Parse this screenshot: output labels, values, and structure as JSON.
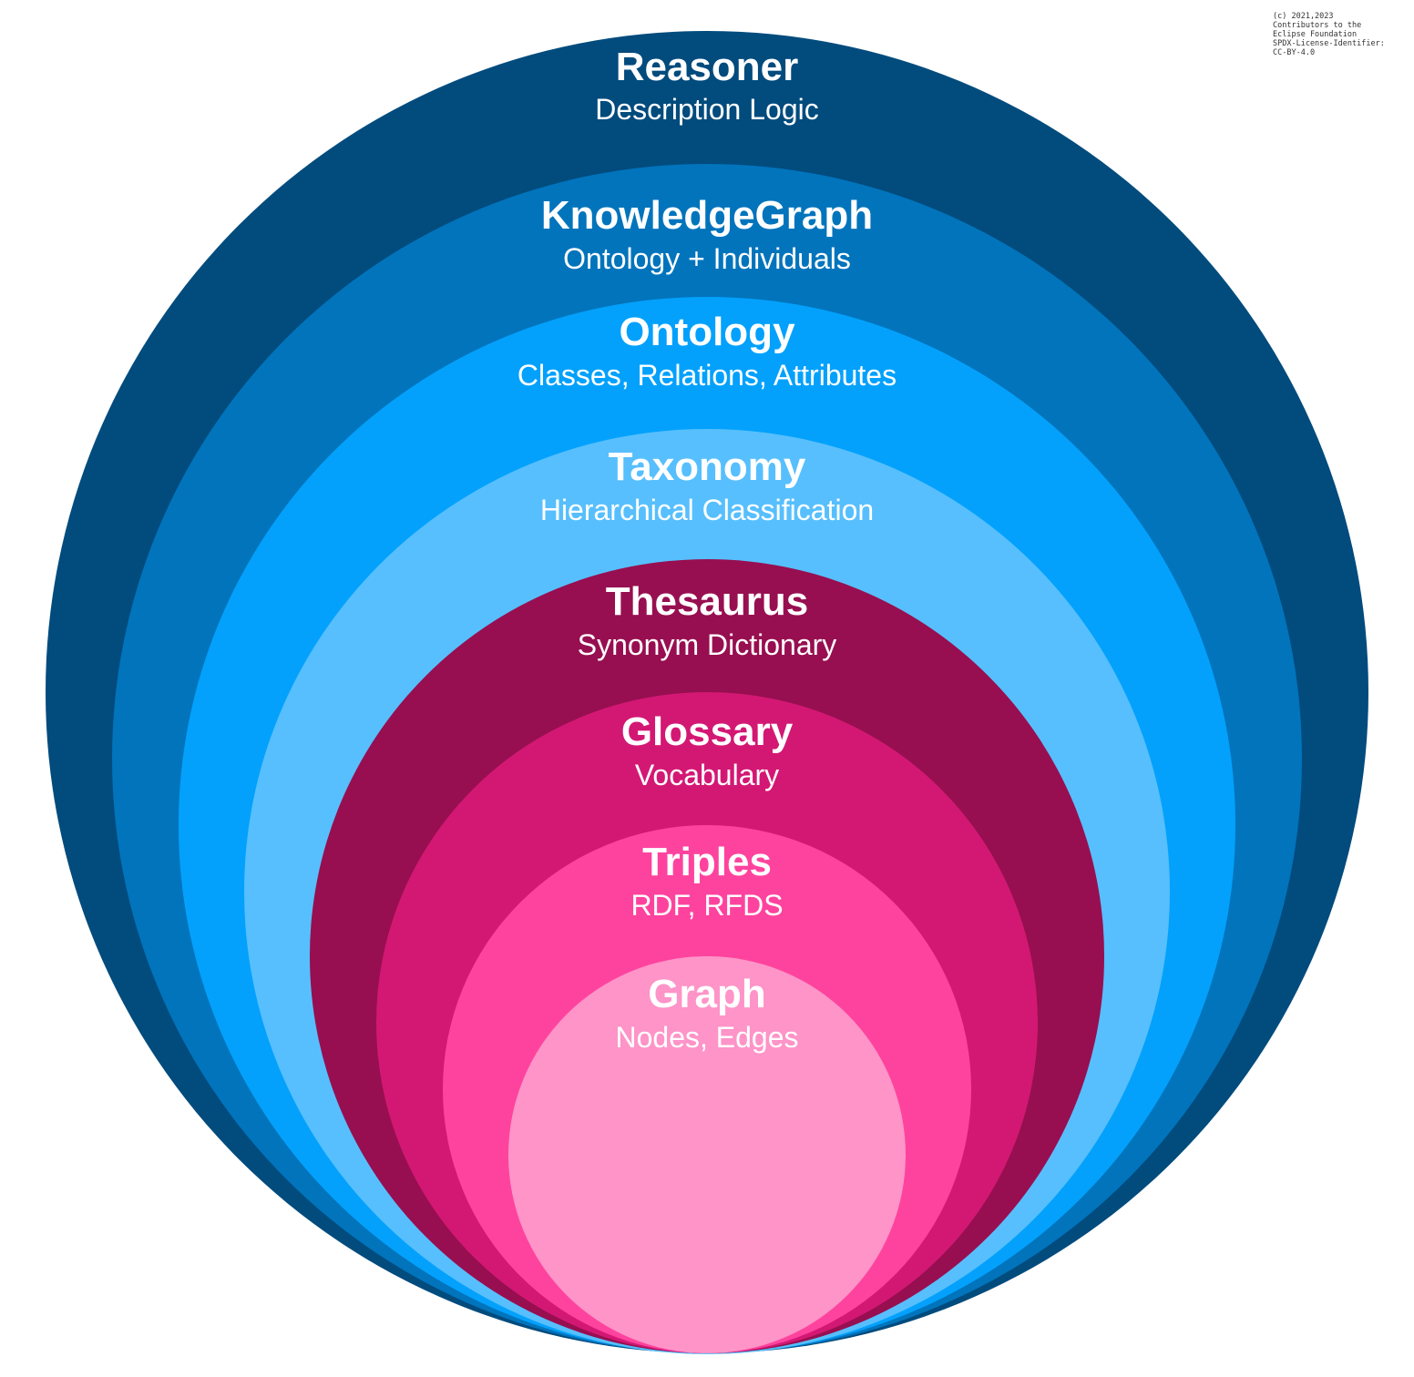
{
  "copyright": "(c) 2021,2023\nContributors to the\nEclipse Foundation\nSPDX-License-Identifier:\nCC-BY-4.0",
  "layers": [
    {
      "title": "Reasoner",
      "subtitle": "Description Logic",
      "color": "#014b7d"
    },
    {
      "title": "KnowledgeGraph",
      "subtitle": "Ontology + Individuals",
      "color": "#0174bc"
    },
    {
      "title": "Ontology",
      "subtitle": "Classes, Relations, Attributes",
      "color": "#03a1fc"
    },
    {
      "title": "Taxonomy",
      "subtitle": "Hierarchical Classification",
      "color": "#57bffd"
    },
    {
      "title": "Thesaurus",
      "subtitle": "Synonym Dictionary",
      "color": "#970f50"
    },
    {
      "title": "Glossary",
      "subtitle": "Vocabulary",
      "color": "#d31874"
    },
    {
      "title": "Triples",
      "subtitle": "RDF, RFDS",
      "color": "#fe439e"
    },
    {
      "title": "Graph",
      "subtitle": "Nodes, Edges",
      "color": "#fe94c8"
    }
  ]
}
